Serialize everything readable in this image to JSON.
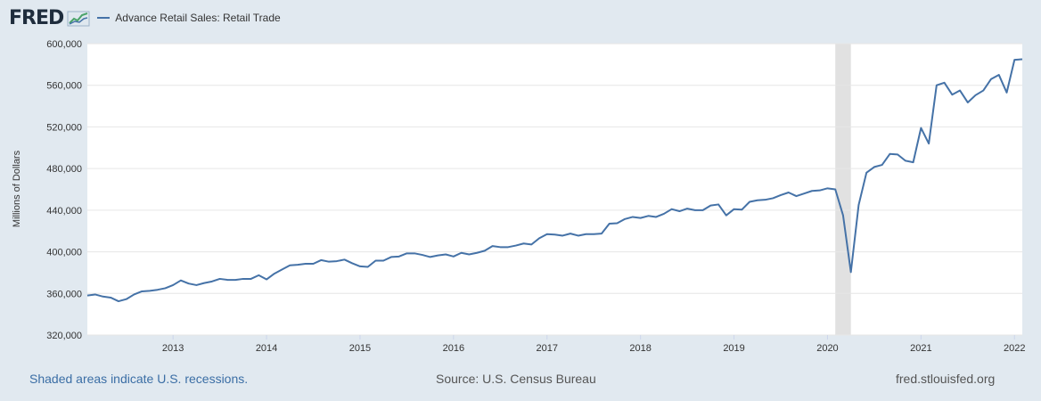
{
  "header": {
    "logo_text": "FRED",
    "logo_icon": "line-chart-icon"
  },
  "colors": {
    "series": "#4572a7",
    "recession": "#e1e1e1",
    "background": "#e1e9f0",
    "plot": "#ffffff",
    "grid": "#e6e6e6"
  },
  "footer": {
    "recession_note": "Shaded areas indicate U.S. recessions.",
    "source": "Source: U.S. Census Bureau",
    "site": "fred.stlouisfed.org"
  },
  "chart_data": {
    "type": "line",
    "title": "",
    "xlabel": "",
    "ylabel": "Millions of Dollars",
    "ylim": [
      320000,
      600000
    ],
    "y_ticks": [
      320000,
      360000,
      400000,
      440000,
      480000,
      520000,
      560000,
      600000
    ],
    "y_tick_labels": [
      "320,000",
      "360,000",
      "400,000",
      "440,000",
      "480,000",
      "520,000",
      "560,000",
      "600,000"
    ],
    "x_ticks": [
      "2013-01",
      "2014-01",
      "2015-01",
      "2016-01",
      "2017-01",
      "2018-01",
      "2019-01",
      "2020-01",
      "2021-01",
      "2022-01"
    ],
    "x_tick_labels": [
      "2013",
      "2014",
      "2015",
      "2016",
      "2017",
      "2018",
      "2019",
      "2020",
      "2021",
      "2022"
    ],
    "x_range": [
      "2012-02",
      "2022-02"
    ],
    "grid": true,
    "legend": "top-left",
    "recessions": [
      {
        "start": "2020-02",
        "end": "2020-04"
      }
    ],
    "series": [
      {
        "name": "Advance Retail Sales: Retail Trade",
        "start": "2012-02",
        "frequency": "monthly",
        "values": [
          358000,
          359000,
          357000,
          356000,
          352500,
          354500,
          359000,
          362000,
          362500,
          363500,
          365000,
          368000,
          372500,
          369500,
          368000,
          370000,
          371500,
          374000,
          373000,
          373000,
          374000,
          374000,
          377500,
          373500,
          379000,
          383000,
          387000,
          387500,
          388500,
          388500,
          392000,
          390500,
          391000,
          392500,
          389000,
          386000,
          385500,
          391500,
          391500,
          395000,
          395500,
          398500,
          398500,
          397000,
          395000,
          396500,
          397500,
          395500,
          399000,
          397500,
          399000,
          401000,
          405500,
          404500,
          404500,
          406000,
          408000,
          407000,
          413000,
          417000,
          416500,
          415500,
          417500,
          415500,
          417000,
          417000,
          417500,
          427000,
          427500,
          431500,
          433500,
          432500,
          434500,
          433500,
          436500,
          441000,
          439000,
          441500,
          440000,
          440000,
          444500,
          445500,
          435000,
          441000,
          440500,
          448000,
          449500,
          450000,
          451500,
          454500,
          457000,
          453500,
          456000,
          458500,
          459000,
          461000,
          460000,
          435000,
          380500,
          445000,
          476000,
          481500,
          483500,
          494000,
          493500,
          487500,
          486000,
          519000,
          504000,
          560000,
          562500,
          551000,
          555000,
          543500,
          550500,
          555000,
          566000,
          570000,
          553000,
          584500,
          585000
        ]
      }
    ]
  }
}
